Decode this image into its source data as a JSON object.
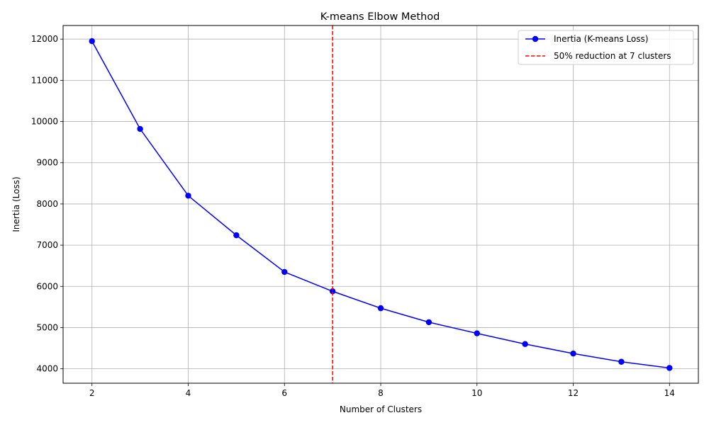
{
  "chart_data": {
    "type": "line",
    "title": "K-means Elbow Method",
    "xlabel": "Number of Clusters",
    "ylabel": "Inertia (Loss)",
    "xlim": [
      1.4,
      14.6
    ],
    "ylim": [
      3650,
      12330
    ],
    "x_ticks": [
      2,
      4,
      6,
      8,
      10,
      12,
      14
    ],
    "y_ticks": [
      4000,
      5000,
      6000,
      7000,
      8000,
      9000,
      10000,
      11000,
      12000
    ],
    "grid": true,
    "legend_position": "top-right",
    "series": [
      {
        "name": "Inertia (K-means Loss)",
        "color": "#0000ff",
        "marker": "circle",
        "x": [
          2,
          3,
          4,
          5,
          6,
          7,
          8,
          9,
          10,
          11,
          12,
          13,
          14
        ],
        "y": [
          11950,
          9820,
          8200,
          7240,
          6350,
          5880,
          5470,
          5130,
          4860,
          4600,
          4370,
          4170,
          4020
        ]
      }
    ],
    "vline": {
      "name": "50% reduction at 7 clusters",
      "x": 7,
      "color": "#ff0000",
      "style": "dashed"
    }
  }
}
